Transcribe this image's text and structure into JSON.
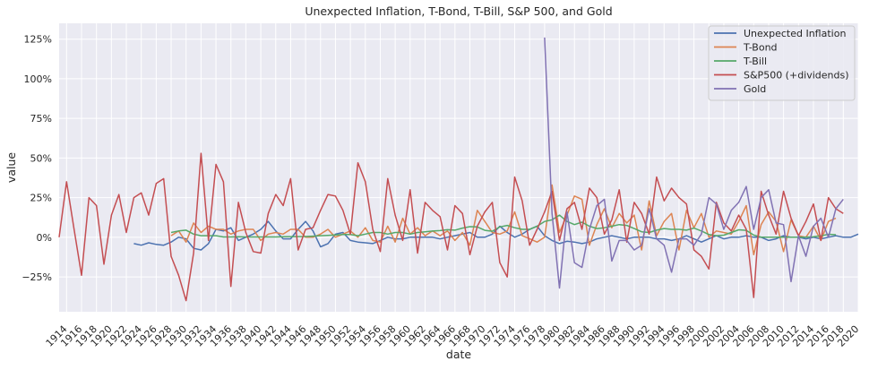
{
  "chart_data": {
    "type": "line",
    "title": "Unexpected Inflation, T-Bond, T-Bill, S&P 500, and Gold",
    "xlabel": "date",
    "ylabel": "value",
    "xlim": [
      1913,
      2020
    ],
    "ylim": [
      -0.47,
      1.35
    ],
    "grid": true,
    "legend_position": "top-right",
    "x_ticks": [
      1914,
      1916,
      1918,
      1920,
      1922,
      1924,
      1926,
      1928,
      1930,
      1932,
      1934,
      1936,
      1938,
      1940,
      1942,
      1944,
      1946,
      1948,
      1950,
      1952,
      1954,
      1956,
      1958,
      1960,
      1962,
      1964,
      1966,
      1968,
      1970,
      1972,
      1974,
      1976,
      1978,
      1980,
      1982,
      1984,
      1986,
      1988,
      1990,
      1992,
      1994,
      1996,
      1998,
      2000,
      2002,
      2004,
      2006,
      2008,
      2010,
      2012,
      2014,
      2016,
      2018,
      2020
    ],
    "x_tick_labels": [
      "1914",
      "1916",
      "1918",
      "1920",
      "1922",
      "1924",
      "1926",
      "1928",
      "1930",
      "1932",
      "1934",
      "1936",
      "1938",
      "1940",
      "1942",
      "1944",
      "1946",
      "1948",
      "1950",
      "1952",
      "1954",
      "1956",
      "1958",
      "1960",
      "1962",
      "1964",
      "1966",
      "1968",
      "1970",
      "1972",
      "1974",
      "1976",
      "1978",
      "1980",
      "1982",
      "1984",
      "1986",
      "1988",
      "1990",
      "1992",
      "1994",
      "1996",
      "1998",
      "2000",
      "2002",
      "2004",
      "2006",
      "2008",
      "2010",
      "2012",
      "2014",
      "2016",
      "2018",
      "2020"
    ],
    "y_ticks": [
      -0.25,
      0,
      0.25,
      0.5,
      0.75,
      1.0,
      1.25
    ],
    "y_tick_labels": [
      "−25%",
      "0%",
      "25%",
      "50%",
      "75%",
      "100%",
      "125%"
    ],
    "series": [
      {
        "name": "Unexpected Inflation",
        "color": "#4c72b0",
        "start_year": 1923,
        "values": [
          -0.04,
          -0.05,
          -0.035,
          -0.045,
          -0.05,
          -0.03,
          0.0,
          -0.01,
          -0.07,
          -0.08,
          -0.04,
          0.05,
          0.04,
          0.06,
          -0.02,
          0.0,
          0.02,
          0.05,
          0.1,
          0.04,
          -0.01,
          -0.01,
          0.05,
          0.1,
          0.04,
          -0.06,
          -0.04,
          0.02,
          0.03,
          -0.02,
          -0.03,
          -0.035,
          -0.04,
          -0.02,
          0.0,
          -0.01,
          -0.01,
          0.0,
          0.0,
          0.0,
          0.0,
          -0.01,
          0.0,
          0.01,
          0.02,
          0.03,
          0.0,
          0.0,
          0.02,
          0.07,
          0.03,
          0.0,
          0.02,
          0.05,
          0.07,
          0.01,
          -0.02,
          -0.04,
          -0.025,
          -0.03,
          -0.04,
          -0.03,
          -0.01,
          0.0,
          0.01,
          0.0,
          -0.01,
          0.0,
          0.0,
          0.0,
          -0.01,
          -0.01,
          -0.02,
          -0.01,
          0.01,
          -0.01,
          -0.03,
          -0.01,
          0.01,
          -0.01,
          0.0,
          0.0,
          0.01,
          0.0,
          0.0,
          -0.02,
          -0.01,
          0.01,
          0.0,
          0.0,
          -0.01,
          0.0,
          -0.01,
          0.0,
          0.01,
          0.0,
          0.0,
          0.02
        ]
      },
      {
        "name": "T-Bond",
        "color": "#dd8452",
        "start_year": 1928,
        "values": [
          0.01,
          0.04,
          -0.03,
          0.09,
          0.03,
          0.07,
          0.05,
          0.05,
          0.02,
          0.04,
          0.05,
          0.05,
          -0.02,
          0.02,
          0.03,
          0.02,
          0.05,
          0.05,
          0.0,
          0.0,
          0.02,
          0.05,
          0.0,
          0.02,
          0.04,
          0.0,
          0.06,
          -0.02,
          -0.03,
          0.07,
          -0.03,
          0.12,
          0.02,
          0.06,
          0.01,
          0.04,
          0.01,
          0.04,
          -0.02,
          0.03,
          -0.05,
          0.17,
          0.1,
          0.03,
          0.02,
          0.04,
          0.16,
          0.01,
          -0.01,
          -0.03,
          0.0,
          0.33,
          0.03,
          0.14,
          0.26,
          0.24,
          -0.05,
          0.08,
          0.18,
          0.06,
          0.15,
          0.09,
          0.14,
          -0.08,
          0.23,
          0.01,
          0.1,
          0.15,
          -0.08,
          0.17,
          0.06,
          0.15,
          0.0,
          0.04,
          0.03,
          0.02,
          0.1,
          0.2,
          -0.11,
          0.08,
          0.16,
          0.1,
          -0.09,
          0.11,
          0.01,
          0.0,
          0.07,
          -0.02,
          0.1,
          0.12
        ]
      },
      {
        "name": "T-Bill",
        "color": "#55a868",
        "start_year": 1928,
        "values": [
          0.03,
          0.04,
          0.045,
          0.02,
          0.01,
          0.01,
          0.01,
          0.002,
          0.002,
          0.003,
          0.002,
          0.002,
          0.002,
          0.002,
          0.002,
          0.003,
          0.004,
          0.004,
          0.005,
          0.007,
          0.01,
          0.012,
          0.015,
          0.017,
          0.018,
          0.01,
          0.02,
          0.03,
          0.03,
          0.02,
          0.03,
          0.03,
          0.02,
          0.03,
          0.035,
          0.039,
          0.042,
          0.048,
          0.045,
          0.058,
          0.067,
          0.065,
          0.044,
          0.038,
          0.065,
          0.075,
          0.06,
          0.05,
          0.05,
          0.07,
          0.1,
          0.11,
          0.14,
          0.1,
          0.08,
          0.095,
          0.07,
          0.055,
          0.06,
          0.07,
          0.08,
          0.075,
          0.055,
          0.035,
          0.03,
          0.045,
          0.055,
          0.05,
          0.05,
          0.045,
          0.058,
          0.04,
          0.017,
          0.01,
          0.013,
          0.03,
          0.047,
          0.044,
          0.014,
          0.001,
          0.001,
          0.001,
          0.001,
          0.001,
          0.0,
          0.0,
          0.003,
          0.009,
          0.019,
          0.016
        ]
      },
      {
        "name": "S&P500 (+dividends)",
        "color": "#c44e52",
        "start_year": 1913,
        "values": [
          0.0,
          0.35,
          0.05,
          -0.24,
          0.25,
          0.2,
          -0.17,
          0.14,
          0.27,
          0.03,
          0.25,
          0.28,
          0.14,
          0.34,
          0.37,
          -0.12,
          -0.24,
          -0.4,
          -0.1,
          0.53,
          -0.02,
          0.46,
          0.35,
          -0.31,
          0.22,
          0.03,
          -0.09,
          -0.1,
          0.15,
          0.27,
          0.2,
          0.37,
          -0.08,
          0.05,
          0.06,
          0.17,
          0.27,
          0.26,
          0.17,
          0.02,
          0.47,
          0.35,
          0.05,
          -0.09,
          0.37,
          0.14,
          -0.02,
          0.3,
          -0.1,
          0.22,
          0.17,
          0.13,
          -0.08,
          0.2,
          0.15,
          -0.11,
          0.07,
          0.16,
          0.22,
          -0.16,
          -0.25,
          0.38,
          0.23,
          -0.05,
          0.05,
          0.16,
          0.29,
          -0.02,
          0.18,
          0.22,
          0.05,
          0.31,
          0.25,
          0.02,
          0.11,
          0.3,
          -0.03,
          0.22,
          0.15,
          0.02,
          0.38,
          0.23,
          0.31,
          0.25,
          0.21,
          -0.08,
          -0.12,
          -0.2,
          0.22,
          0.09,
          0.04,
          0.14,
          0.05,
          -0.38,
          0.29,
          0.14,
          0.02,
          0.29,
          0.12,
          0.01,
          0.1,
          0.21,
          -0.02,
          0.25,
          0.18,
          0.15
        ]
      },
      {
        "name": "Gold",
        "color": "#8172b3",
        "start_year": 1978,
        "values": [
          1.26,
          0.15,
          -0.32,
          0.16,
          -0.16,
          -0.19,
          0.05,
          0.2,
          0.24,
          -0.15,
          -0.02,
          -0.02,
          -0.08,
          -0.05,
          0.18,
          -0.01,
          -0.05,
          -0.22,
          -0.01,
          -0.01,
          -0.05,
          0.02,
          0.25,
          0.21,
          0.05,
          0.17,
          0.22,
          0.32,
          0.05,
          0.25,
          0.3,
          0.09,
          0.08,
          -0.28,
          0.01,
          -0.12,
          0.07,
          0.12,
          0.0,
          0.18,
          0.24
        ]
      }
    ]
  }
}
